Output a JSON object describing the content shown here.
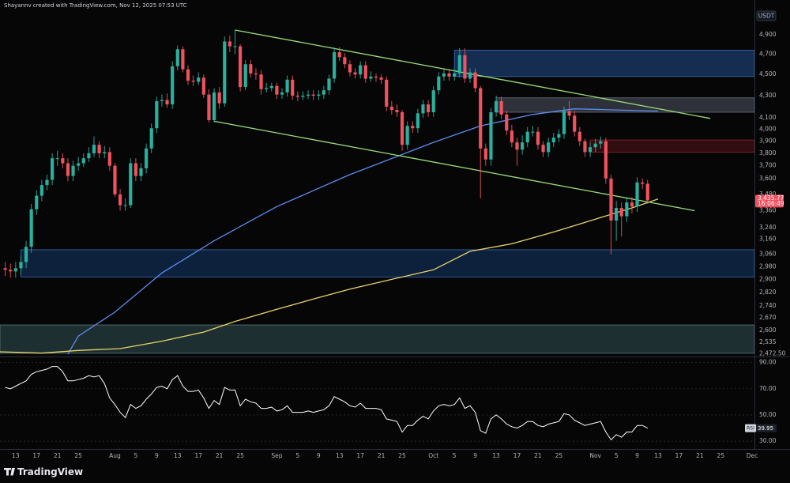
{
  "header": "Shayannv created with TradingView.com, Nov 12, 2025 07:53 UTC",
  "logo": "TradingView",
  "chart_data": {
    "type": "candlestick",
    "currency": "USDT",
    "log_scale": true,
    "grid": false,
    "up_color": "#2ab09e",
    "down_color": "#f0525f",
    "x": [
      "07-11",
      "07-12",
      "07-13",
      "07-14",
      "07-15",
      "07-16",
      "07-17",
      "07-18",
      "07-19",
      "07-20",
      "07-21",
      "07-22",
      "07-23",
      "07-24",
      "07-25",
      "07-26",
      "07-27",
      "07-28",
      "07-29",
      "07-30",
      "07-31",
      "08-01",
      "08-02",
      "08-03",
      "08-04",
      "08-05",
      "08-06",
      "08-07",
      "08-08",
      "08-09",
      "08-10",
      "08-11",
      "08-12",
      "08-13",
      "08-14",
      "08-15",
      "08-16",
      "08-17",
      "08-18",
      "08-19",
      "08-20",
      "08-21",
      "08-22",
      "08-23",
      "08-24",
      "08-25",
      "08-26",
      "08-27",
      "08-28",
      "08-29",
      "08-30",
      "08-31",
      "09-01",
      "09-02",
      "09-03",
      "09-04",
      "09-05",
      "09-06",
      "09-07",
      "09-08",
      "09-09",
      "09-10",
      "09-11",
      "09-12",
      "09-13",
      "09-14",
      "09-15",
      "09-16",
      "09-17",
      "09-18",
      "09-19",
      "09-20",
      "09-21",
      "09-22",
      "09-23",
      "09-24",
      "09-25",
      "09-26",
      "09-27",
      "09-28",
      "09-29",
      "09-30",
      "10-01",
      "10-02",
      "10-03",
      "10-04",
      "10-05",
      "10-06",
      "10-07",
      "10-08",
      "10-09",
      "10-10",
      "10-11",
      "10-12",
      "10-13",
      "10-14",
      "10-15",
      "10-16",
      "10-17",
      "10-18",
      "10-19",
      "10-20",
      "10-21",
      "10-22",
      "10-23",
      "10-24",
      "10-25",
      "10-26",
      "10-27",
      "10-28",
      "10-29",
      "10-30",
      "10-31",
      "11-01",
      "11-02",
      "11-03",
      "11-04",
      "11-05",
      "11-06",
      "11-07",
      "11-08",
      "11-09",
      "11-10",
      "11-11"
    ],
    "open": [
      2970,
      2960,
      2950,
      2970,
      3010,
      3110,
      3370,
      3470,
      3550,
      3590,
      3760,
      3760,
      3720,
      3620,
      3700,
      3720,
      3760,
      3800,
      3870,
      3800,
      3810,
      3700,
      3480,
      3400,
      3400,
      3720,
      3620,
      3680,
      3840,
      4010,
      4250,
      4260,
      4220,
      4580,
      4750,
      4550,
      4440,
      4430,
      4470,
      4310,
      4080,
      4330,
      4230,
      4830,
      4780,
      4780,
      4380,
      4600,
      4510,
      4500,
      4360,
      4370,
      4390,
      4310,
      4330,
      4450,
      4300,
      4290,
      4300,
      4310,
      4300,
      4310,
      4350,
      4460,
      4720,
      4670,
      4600,
      4520,
      4500,
      4590,
      4460,
      4480,
      4470,
      4450,
      4200,
      4170,
      4150,
      3870,
      4030,
      4010,
      4140,
      4220,
      4150,
      4350,
      4480,
      4510,
      4480,
      4510,
      4690,
      4460,
      4520,
      4370,
      3840,
      3750,
      4150,
      4250,
      4130,
      3990,
      3890,
      3830,
      3890,
      3980,
      3980,
      3870,
      3810,
      3890,
      3930,
      3960,
      4160,
      4120,
      3980,
      3900,
      3810,
      3850,
      3880,
      3900,
      3600,
      3290,
      3380,
      3320,
      3420,
      3390,
      3570,
      3560
    ],
    "high": [
      3010,
      3000,
      3010,
      3050,
      3150,
      3410,
      3510,
      3590,
      3630,
      3800,
      3820,
      3800,
      3760,
      3740,
      3770,
      3800,
      3850,
      3940,
      3900,
      3860,
      3850,
      3720,
      3520,
      3450,
      3760,
      3760,
      3720,
      3880,
      4050,
      4290,
      4310,
      4320,
      4630,
      4790,
      4780,
      4590,
      4490,
      4520,
      4500,
      4360,
      4370,
      4380,
      4880,
      4890,
      4950,
      4800,
      4640,
      4640,
      4560,
      4540,
      4420,
      4420,
      4420,
      4370,
      4490,
      4490,
      4340,
      4340,
      4350,
      4350,
      4350,
      4390,
      4500,
      4770,
      4770,
      4710,
      4640,
      4560,
      4630,
      4630,
      4530,
      4510,
      4500,
      4480,
      4250,
      4220,
      4170,
      4070,
      4070,
      4180,
      4260,
      4260,
      4390,
      4520,
      4550,
      4540,
      4550,
      4760,
      4760,
      4560,
      4560,
      4390,
      3880,
      4190,
      4300,
      4290,
      4160,
      4040,
      3930,
      3950,
      4020,
      4030,
      4020,
      3900,
      3930,
      3970,
      4000,
      4200,
      4250,
      4160,
      4020,
      3920,
      3890,
      3920,
      3940,
      3930,
      3630,
      3430,
      3420,
      3460,
      3460,
      3610,
      3600,
      3590
    ],
    "low": [
      2920,
      2910,
      2910,
      2930,
      2970,
      3070,
      3330,
      3430,
      3510,
      3550,
      3700,
      3680,
      3580,
      3580,
      3660,
      3690,
      3730,
      3770,
      3760,
      3760,
      3660,
      3460,
      3360,
      3360,
      3380,
      3580,
      3580,
      3640,
      3800,
      3970,
      4200,
      4190,
      4180,
      4540,
      4520,
      4400,
      4390,
      4400,
      4280,
      4060,
      4060,
      4180,
      4200,
      4720,
      4700,
      4340,
      4350,
      4470,
      4450,
      4310,
      4330,
      4340,
      4270,
      4270,
      4290,
      4260,
      4250,
      4260,
      4270,
      4260,
      4260,
      4270,
      4310,
      4420,
      4630,
      4560,
      4480,
      4460,
      4460,
      4420,
      4430,
      4430,
      4410,
      4160,
      4130,
      4110,
      3820,
      3830,
      3970,
      3970,
      4100,
      4110,
      4110,
      4310,
      4440,
      4440,
      4440,
      4470,
      4420,
      4420,
      4330,
      3450,
      3700,
      3700,
      4110,
      4090,
      3950,
      3850,
      3700,
      3790,
      3850,
      3940,
      3830,
      3770,
      3770,
      3850,
      3890,
      3920,
      4080,
      3940,
      3860,
      3770,
      3770,
      3810,
      3840,
      3560,
      3060,
      3150,
      3180,
      3280,
      3340,
      3350,
      3520,
      3410
    ],
    "close": [
      2960,
      2950,
      2970,
      3010,
      3110,
      3370,
      3470,
      3550,
      3590,
      3760,
      3760,
      3720,
      3620,
      3700,
      3720,
      3760,
      3800,
      3870,
      3800,
      3810,
      3700,
      3480,
      3400,
      3400,
      3720,
      3620,
      3680,
      3840,
      4010,
      4250,
      4260,
      4220,
      4580,
      4750,
      4550,
      4440,
      4430,
      4470,
      4310,
      4080,
      4330,
      4230,
      4830,
      4780,
      4780,
      4380,
      4600,
      4510,
      4500,
      4360,
      4370,
      4390,
      4310,
      4330,
      4450,
      4300,
      4290,
      4300,
      4310,
      4300,
      4310,
      4350,
      4460,
      4720,
      4670,
      4600,
      4520,
      4500,
      4590,
      4460,
      4480,
      4470,
      4450,
      4200,
      4170,
      4150,
      3870,
      4030,
      4010,
      4140,
      4220,
      4150,
      4350,
      4480,
      4510,
      4480,
      4510,
      4690,
      4460,
      4520,
      4370,
      3840,
      3750,
      4150,
      4250,
      4130,
      3990,
      3890,
      3830,
      3890,
      3980,
      3980,
      3870,
      3810,
      3890,
      3930,
      3960,
      4160,
      4120,
      3980,
      3900,
      3810,
      3850,
      3880,
      3900,
      3600,
      3290,
      3380,
      3320,
      3420,
      3390,
      3570,
      3560,
      3435.77
    ],
    "last_price_label": "3,435.77",
    "countdown": "16:06:49",
    "xlim": [
      "07-10",
      "12-01"
    ],
    "xticks": [
      {
        "value": "07-13",
        "label": "13"
      },
      {
        "value": "07-17",
        "label": "17"
      },
      {
        "value": "07-21",
        "label": "21"
      },
      {
        "value": "07-25",
        "label": "25"
      },
      {
        "value": "08-01",
        "label": "Aug"
      },
      {
        "value": "08-05",
        "label": "5"
      },
      {
        "value": "08-09",
        "label": "9"
      },
      {
        "value": "08-13",
        "label": "13"
      },
      {
        "value": "08-17",
        "label": "17"
      },
      {
        "value": "08-21",
        "label": "21"
      },
      {
        "value": "08-25",
        "label": "25"
      },
      {
        "value": "09-01",
        "label": "Sep"
      },
      {
        "value": "09-05",
        "label": "5"
      },
      {
        "value": "09-09",
        "label": "9"
      },
      {
        "value": "09-13",
        "label": "13"
      },
      {
        "value": "09-17",
        "label": "17"
      },
      {
        "value": "09-21",
        "label": "21"
      },
      {
        "value": "09-25",
        "label": "25"
      },
      {
        "value": "10-01",
        "label": "Oct"
      },
      {
        "value": "10-05",
        "label": "5"
      },
      {
        "value": "10-09",
        "label": "9"
      },
      {
        "value": "10-13",
        "label": "13"
      },
      {
        "value": "10-17",
        "label": "17"
      },
      {
        "value": "10-21",
        "label": "21"
      },
      {
        "value": "10-25",
        "label": "25"
      },
      {
        "value": "11-01",
        "label": "Nov"
      },
      {
        "value": "11-05",
        "label": "5"
      },
      {
        "value": "11-09",
        "label": "9"
      },
      {
        "value": "11-13",
        "label": "13"
      },
      {
        "value": "11-17",
        "label": "17"
      },
      {
        "value": "11-21",
        "label": "21"
      },
      {
        "value": "11-25",
        "label": "25"
      },
      {
        "value": "12-01",
        "label": "Dec"
      }
    ],
    "ylim": [
      2462,
      5279
    ],
    "yticks": [
      {
        "value": 4900,
        "label": "4,900"
      },
      {
        "value": 4700,
        "label": "4,700"
      },
      {
        "value": 4500,
        "label": "4,500"
      },
      {
        "value": 4300,
        "label": "4,300"
      },
      {
        "value": 4100,
        "label": "4,100"
      },
      {
        "value": 4000,
        "label": "4,000"
      },
      {
        "value": 3900,
        "label": "3,900"
      },
      {
        "value": 3800,
        "label": "3,800"
      },
      {
        "value": 3700,
        "label": "3,700"
      },
      {
        "value": 3600,
        "label": "3,600"
      },
      {
        "value": 3480,
        "label": "3,480"
      },
      {
        "value": 3360,
        "label": "3,360"
      },
      {
        "value": 3240,
        "label": "3,240"
      },
      {
        "value": 3160,
        "label": "3,160"
      },
      {
        "value": 3060,
        "label": "3,060"
      },
      {
        "value": 2980,
        "label": "2,980"
      },
      {
        "value": 2900,
        "label": "2,900"
      },
      {
        "value": 2820,
        "label": "2,820"
      },
      {
        "value": 2740,
        "label": "2,740"
      },
      {
        "value": 2670,
        "label": "2,670"
      },
      {
        "value": 2600,
        "label": "2,600"
      },
      {
        "value": 2535,
        "label": "2,535"
      },
      {
        "value": 2472.5,
        "label": "2,472.50"
      }
    ],
    "zones": [
      {
        "start": "10-05",
        "low": 4480,
        "high": 4740,
        "color": "#17355e",
        "border": "#3b6fb5"
      },
      {
        "start": "10-13",
        "low": 4150,
        "high": 4280,
        "color": "#363a44",
        "border": "#6d7280"
      },
      {
        "start": "10-31",
        "low": 3810,
        "high": 3910,
        "color": "#3a0e14",
        "border": "#8a2a33"
      },
      {
        "start": "07-14",
        "low": 2915,
        "high": 3090,
        "color": "#0f2748",
        "border": "#3b6fb5"
      },
      {
        "start": "07-10",
        "low": 2475,
        "high": 2630,
        "color": "#22373a",
        "border": "#5d7a7a"
      }
    ],
    "moving_averages": [
      {
        "color": "#5b8def",
        "x": [
          "07-23",
          "07-25",
          "08-01",
          "08-10",
          "08-20",
          "09-01",
          "09-15",
          "10-01",
          "10-10",
          "10-20",
          "10-28",
          "11-05",
          "11-13"
        ],
        "values": [
          2470,
          2568,
          2703,
          2940,
          3150,
          3390,
          3630,
          3890,
          4030,
          4130,
          4180,
          4170,
          4160
        ]
      },
      {
        "color": "#e8d36a",
        "x": [
          "07-10",
          "07-18",
          "07-25",
          "08-02",
          "08-10",
          "08-18",
          "08-24",
          "09-01",
          "09-08",
          "09-15",
          "09-23",
          "10-01",
          "10-08",
          "10-16",
          "10-24",
          "11-01",
          "11-08",
          "11-13"
        ],
        "values": [
          2483,
          2476,
          2490,
          2500,
          2540,
          2590,
          2650,
          2720,
          2780,
          2840,
          2900,
          2960,
          3080,
          3130,
          3210,
          3300,
          3380,
          3445
        ]
      }
    ],
    "trendlines": [
      {
        "color": "#9be07a",
        "x": [
          "08-24",
          "11-23"
        ],
        "values": [
          4950,
          4095
        ]
      },
      {
        "color": "#9be07a",
        "x": [
          "08-20",
          "11-20"
        ],
        "values": [
          4070,
          3360
        ]
      }
    ],
    "rsi": {
      "label": "RSI",
      "last_label": "39.95",
      "color": "#ffffff",
      "ylim": [
        24,
        94
      ],
      "yticks": [
        {
          "value": 90,
          "label": "90.00"
        },
        {
          "value": 70,
          "label": "70.00"
        },
        {
          "value": 50,
          "label": "50.00"
        },
        {
          "value": 30,
          "label": "30.00"
        }
      ],
      "values": [
        71,
        70,
        72,
        74,
        76,
        81,
        83,
        84,
        85,
        87,
        87,
        83,
        76,
        76,
        77,
        78,
        80,
        79,
        80,
        74,
        63,
        58,
        52,
        48,
        58,
        55,
        57,
        62,
        66,
        71,
        72,
        70,
        77,
        80,
        72,
        68,
        68,
        69,
        63,
        55,
        61,
        58,
        71,
        69,
        69,
        57,
        62,
        60,
        59,
        55,
        55,
        56,
        53,
        54,
        57,
        52,
        52,
        52,
        53,
        52,
        53,
        54,
        57,
        64,
        62,
        60,
        57,
        56,
        59,
        55,
        55,
        55,
        54,
        47,
        46,
        45,
        37,
        42,
        42,
        46,
        49,
        47,
        53,
        57,
        58,
        57,
        58,
        63,
        55,
        57,
        52,
        38,
        36,
        47,
        50,
        47,
        43,
        41,
        40,
        42,
        45,
        45,
        42,
        41,
        43,
        44,
        45,
        51,
        50,
        46,
        44,
        42,
        43,
        44,
        45,
        37,
        31,
        35,
        33,
        37,
        37,
        42,
        42,
        39.95
      ]
    }
  }
}
